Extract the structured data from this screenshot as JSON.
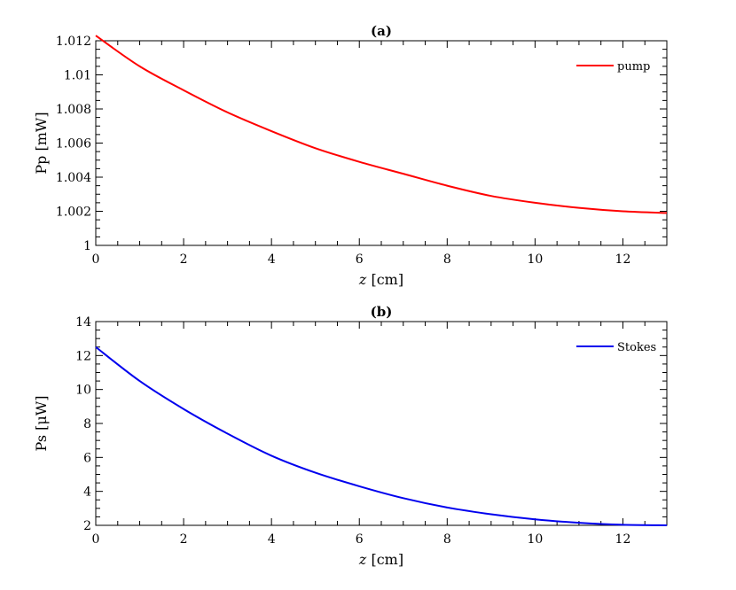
{
  "chart_data": [
    {
      "type": "line",
      "title": "(a)",
      "xlabel": "z [cm]",
      "ylabel": "Pp [mW]",
      "xlim": [
        0,
        13
      ],
      "ylim": [
        1,
        1.012
      ],
      "xticks": [
        0,
        2,
        4,
        6,
        8,
        10,
        12
      ],
      "xtick_labels": [
        "0",
        "2",
        "4",
        "6",
        "8",
        "10",
        "12"
      ],
      "yticks": [
        1,
        1.002,
        1.004,
        1.006,
        1.008,
        1.01,
        1.012
      ],
      "ytick_labels": [
        "1",
        "1.002",
        "1.004",
        "1.006",
        "1.008",
        "1.01",
        "1.012"
      ],
      "grid": false,
      "legend_position": "top-right",
      "series": [
        {
          "name": "pump",
          "color": "#ff0000",
          "x": [
            0,
            1,
            2,
            3,
            4,
            5,
            6,
            7,
            8,
            9,
            10,
            11,
            12,
            13
          ],
          "y": [
            1.0123,
            1.0105,
            1.0091,
            1.0078,
            1.0067,
            1.0057,
            1.0049,
            1.0042,
            1.0035,
            1.0029,
            1.0025,
            1.0022,
            1.002,
            1.0019
          ]
        }
      ]
    },
    {
      "type": "line",
      "title": "(b)",
      "xlabel": "z [cm]",
      "ylabel": "Ps [μW]",
      "xlim": [
        0,
        13
      ],
      "ylim": [
        2,
        14
      ],
      "xticks": [
        0,
        2,
        4,
        6,
        8,
        10,
        12
      ],
      "xtick_labels": [
        "0",
        "2",
        "4",
        "6",
        "8",
        "10",
        "12"
      ],
      "yticks": [
        2,
        4,
        6,
        8,
        10,
        12,
        14
      ],
      "ytick_labels": [
        "2",
        "4",
        "6",
        "8",
        "10",
        "12",
        "14"
      ],
      "grid": false,
      "legend_position": "top-right",
      "series": [
        {
          "name": "Stokes",
          "color": "#0000ee",
          "x": [
            0,
            1,
            2,
            3,
            4,
            5,
            6,
            7,
            8,
            9,
            10,
            11,
            12,
            13
          ],
          "y": [
            12.5,
            10.5,
            8.85,
            7.4,
            6.1,
            5.1,
            4.3,
            3.6,
            3.05,
            2.65,
            2.35,
            2.15,
            2.03,
            2.0
          ]
        }
      ]
    }
  ]
}
